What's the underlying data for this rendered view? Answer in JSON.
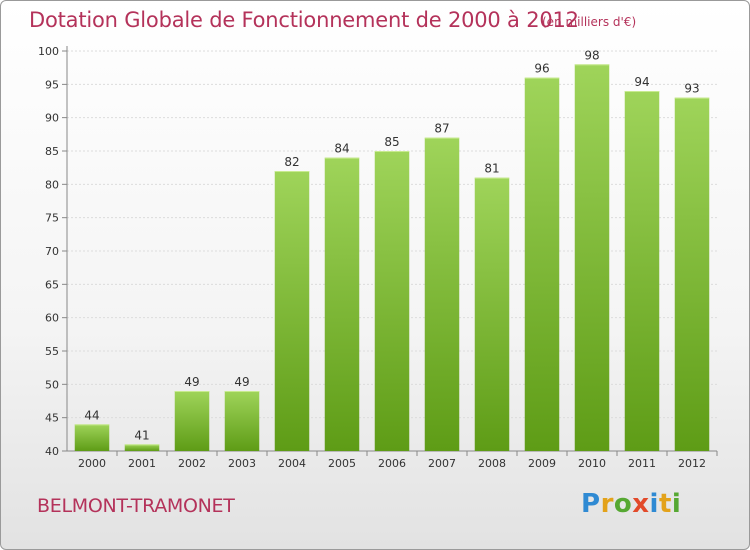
{
  "title": "Dotation Globale de Fonctionnement de 2000 à 2012",
  "subtitle": "(en milliers d'€)",
  "commune": "BELMONT-TRAMONET",
  "logo": {
    "text": "Proxiti",
    "letters": [
      "P",
      "r",
      "o",
      "x",
      "i",
      "t",
      "i"
    ]
  },
  "colors": {
    "bar_light": "#9fd45a",
    "bar_dark": "#5e9c16",
    "text_accent": "#b4325a"
  },
  "chart_data": {
    "type": "bar",
    "title": "Dotation Globale de Fonctionnement de 2000 à 2012",
    "subtitle": "(en milliers d'€)",
    "xlabel": "",
    "ylabel": "",
    "categories": [
      "2000",
      "2001",
      "2002",
      "2003",
      "2004",
      "2005",
      "2006",
      "2007",
      "2008",
      "2009",
      "2010",
      "2011",
      "2012"
    ],
    "values": [
      44,
      41,
      49,
      49,
      82,
      84,
      85,
      87,
      81,
      96,
      98,
      94,
      93
    ],
    "ylim": [
      40,
      100
    ],
    "yticks": [
      40,
      45,
      50,
      55,
      60,
      65,
      70,
      75,
      80,
      85,
      90,
      95,
      100
    ],
    "grid": true,
    "legend": "none"
  }
}
